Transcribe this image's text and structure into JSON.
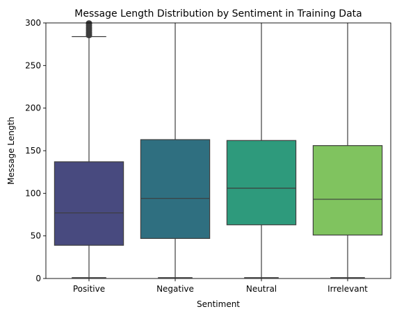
{
  "chart_data": {
    "type": "box",
    "title": "Message Length Distribution by Sentiment in Training Data",
    "xlabel": "Sentiment",
    "ylabel": "Message Length",
    "ylim": [
      0,
      300
    ],
    "yticks": [
      0,
      50,
      100,
      150,
      200,
      250,
      300
    ],
    "grid": false,
    "categories": [
      "Positive",
      "Negative",
      "Neutral",
      "Irrelevant"
    ],
    "boxes": [
      {
        "category": "Positive",
        "whisker_low": 1,
        "q1": 39,
        "median": 77,
        "q3": 137,
        "whisker_high": 284,
        "outliers": [
          285,
          287,
          289,
          291,
          293,
          295,
          297,
          299,
          300
        ],
        "color": "#484a7f"
      },
      {
        "category": "Negative",
        "whisker_low": 1,
        "q1": 47,
        "median": 94,
        "q3": 163,
        "whisker_high": 300,
        "outliers": [],
        "color": "#2f6f80"
      },
      {
        "category": "Neutral",
        "whisker_low": 1,
        "q1": 63,
        "median": 106,
        "q3": 162,
        "whisker_high": 300,
        "outliers": [],
        "color": "#2e9a7c"
      },
      {
        "category": "Irrelevant",
        "whisker_low": 1,
        "q1": 51,
        "median": 93,
        "q3": 156,
        "whisker_high": 300,
        "outliers": [],
        "color": "#80c35f"
      }
    ]
  }
}
